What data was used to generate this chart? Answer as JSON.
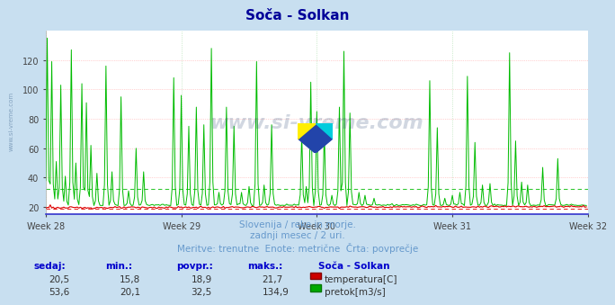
{
  "title": "Soča - Solkan",
  "background_color": "#c8dff0",
  "plot_bg_color": "#ffffff",
  "x_labels": [
    "Week 28",
    "Week 29",
    "Week 30",
    "Week 31",
    "Week 32"
  ],
  "ylim_min": 15,
  "ylim_max": 140,
  "yticks": [
    20,
    40,
    60,
    80,
    100,
    120
  ],
  "grid_color_h": "#ffaaaa",
  "grid_color_v": "#aaddaa",
  "temp_color": "#dd0000",
  "flow_color": "#00bb00",
  "n_points": 360,
  "subtitle1": "Slovenija / reke in morje.",
  "subtitle2": "zadnji mesec / 2 uri.",
  "subtitle3": "Meritve: trenutne  Enote: metrične  Črta: povprečje",
  "subtitle_color": "#6699cc",
  "table_headers": [
    "sedaj:",
    "min.:",
    "povpr.:",
    "maks.:"
  ],
  "station_name": "Soča - Solkan",
  "temp_row": [
    "20,5",
    "15,8",
    "18,9",
    "21,7"
  ],
  "flow_row": [
    "53,6",
    "20,1",
    "32,5",
    "134,9"
  ],
  "temp_label": "temperatura[C]",
  "flow_label": "pretok[m3/s]",
  "temp_avg": 18.9,
  "flow_avg": 32.5,
  "temp_min": 15.8,
  "temp_max": 21.7,
  "flow_min": 20.1,
  "flow_max": 134.9,
  "title_color": "#000099",
  "header_color": "#0000cc",
  "text_color": "#333399"
}
